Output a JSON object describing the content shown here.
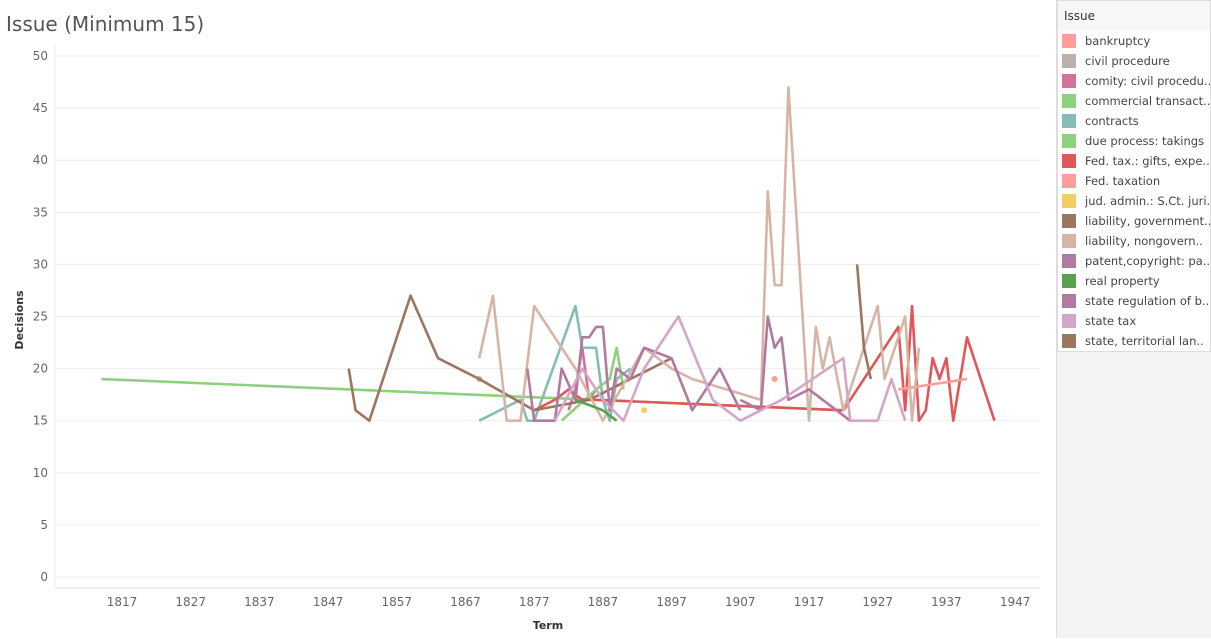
{
  "chart_data": {
    "type": "line",
    "title": "Issue (Minimum 15)",
    "xlabel": "Term",
    "ylabel": "Decisions",
    "xlim": [
      1810,
      1952
    ],
    "ylim": [
      0,
      50
    ],
    "x_ticks": [
      "1817",
      "1827",
      "1837",
      "1847",
      "1857",
      "1867",
      "1877",
      "1887",
      "1897",
      "1907",
      "1917",
      "1927",
      "1937",
      "1947"
    ],
    "y_ticks": [
      "0",
      "5",
      "10",
      "15",
      "20",
      "25",
      "30",
      "35",
      "40",
      "45",
      "50"
    ],
    "grid": "horizontal",
    "legend": {
      "title": "Issue",
      "placement": "right"
    },
    "series": [
      {
        "name": "bankruptcy",
        "color": "#ff9d9a",
        "points": [
          [
            1912,
            19
          ]
        ]
      },
      {
        "name": "civil procedure",
        "color": "#bab0ac",
        "points": [
          [
            1869,
            19
          ]
        ]
      },
      {
        "name": "comity: civil procedu..",
        "color": "#d37295",
        "points": [
          [
            1882,
            16
          ],
          [
            1883,
            18
          ],
          [
            1884,
            22
          ],
          [
            1885,
            17
          ],
          [
            1886,
            18
          ]
        ]
      },
      {
        "name": "commercial transact..",
        "color": "#8cd17d",
        "points": [
          [
            1814,
            19
          ],
          [
            1922,
            16
          ]
        ]
      },
      {
        "name": "contracts",
        "color": "#86bcb6",
        "points": [
          [
            1869,
            15
          ],
          [
            1875,
            17
          ],
          [
            1876,
            15
          ],
          [
            1877,
            15
          ],
          [
            1883,
            26
          ],
          [
            1884,
            22
          ],
          [
            1886,
            22
          ],
          [
            1887,
            17
          ],
          [
            1888,
            15
          ],
          [
            1889,
            19
          ],
          [
            1891,
            20
          ]
        ]
      },
      {
        "name": "due process: takings",
        "color": "#8cd17d",
        "points": [
          [
            1881,
            15
          ],
          [
            1886,
            18
          ],
          [
            1888,
            19
          ],
          [
            1889,
            22
          ],
          [
            1890,
            18
          ]
        ]
      },
      {
        "name": "Fed. tax.: gifts, expe..",
        "color": "#e15759",
        "points": [
          [
            1877,
            16
          ],
          [
            1880,
            17
          ],
          [
            1882,
            18
          ],
          [
            1884,
            17
          ],
          [
            1886,
            17
          ],
          [
            1922,
            16
          ],
          [
            1930,
            24
          ],
          [
            1931,
            16
          ],
          [
            1932,
            26
          ],
          [
            1933,
            15
          ],
          [
            1934,
            16
          ],
          [
            1935,
            21
          ],
          [
            1936,
            19
          ],
          [
            1937,
            21
          ],
          [
            1938,
            15
          ],
          [
            1940,
            23
          ],
          [
            1944,
            15
          ]
        ]
      },
      {
        "name": "Fed. taxation",
        "color": "#ff9d9a",
        "points": [
          [
            1930,
            18
          ],
          [
            1940,
            19
          ]
        ]
      },
      {
        "name": "jud. admin.: S.Ct. juri..",
        "color": "#f1ce63",
        "points": [
          [
            1893,
            16
          ]
        ]
      },
      {
        "name": "liability, government..",
        "color": "#9d7660",
        "points": [
          [
            1850,
            20
          ],
          [
            1851,
            16
          ],
          [
            1853,
            15
          ],
          [
            1859,
            27
          ],
          [
            1863,
            21
          ],
          [
            1869,
            19
          ],
          [
            1877,
            16
          ],
          [
            1885,
            17
          ],
          [
            1897,
            21
          ]
        ]
      },
      {
        "name": "liability, nongovern..",
        "color": "#d7b5a6",
        "points": [
          [
            1869,
            21
          ],
          [
            1871,
            27
          ],
          [
            1873,
            15
          ],
          [
            1875,
            15
          ],
          [
            1877,
            26
          ],
          [
            1883,
            20
          ],
          [
            1887,
            15
          ],
          [
            1893,
            22
          ],
          [
            1897,
            20
          ],
          [
            1900,
            19
          ],
          [
            1910,
            17
          ],
          [
            1911,
            37
          ],
          [
            1912,
            28
          ],
          [
            1913,
            28
          ],
          [
            1914,
            47
          ],
          [
            1917,
            15
          ],
          [
            1918,
            24
          ],
          [
            1919,
            20
          ],
          [
            1920,
            23
          ],
          [
            1922,
            16
          ],
          [
            1927,
            26
          ],
          [
            1928,
            19
          ],
          [
            1931,
            25
          ],
          [
            1932,
            15
          ],
          [
            1933,
            22
          ]
        ]
      },
      {
        "name": "patent,copyright: pa..",
        "color": "#b07aa1",
        "points": [
          [
            1907,
            17
          ],
          [
            1910,
            16
          ],
          [
            1911,
            25
          ],
          [
            1912,
            22
          ],
          [
            1913,
            23
          ],
          [
            1914,
            17
          ],
          [
            1917,
            18
          ],
          [
            1923,
            15
          ]
        ]
      },
      {
        "name": "real property",
        "color": "#59a14f",
        "points": [
          [
            1883,
            17
          ],
          [
            1887,
            16
          ],
          [
            1889,
            15
          ]
        ]
      },
      {
        "name": "state regulation of b..",
        "color": "#b07aa1",
        "points": [
          [
            1876,
            20
          ],
          [
            1877,
            15
          ],
          [
            1880,
            15
          ],
          [
            1881,
            20
          ],
          [
            1883,
            17
          ],
          [
            1884,
            23
          ],
          [
            1885,
            23
          ],
          [
            1886,
            24
          ],
          [
            1887,
            24
          ],
          [
            1888,
            16
          ],
          [
            1889,
            20
          ],
          [
            1891,
            19
          ],
          [
            1893,
            22
          ],
          [
            1897,
            21
          ],
          [
            1900,
            16
          ],
          [
            1904,
            20
          ],
          [
            1907,
            16
          ]
        ]
      },
      {
        "name": "state tax",
        "color": "#d4a6c8",
        "points": [
          [
            1880,
            15
          ],
          [
            1884,
            20
          ],
          [
            1887,
            17
          ],
          [
            1890,
            15
          ],
          [
            1893,
            20
          ],
          [
            1898,
            25
          ],
          [
            1903,
            17
          ],
          [
            1907,
            15
          ],
          [
            1913,
            17
          ],
          [
            1922,
            21
          ],
          [
            1923,
            15
          ],
          [
            1927,
            15
          ],
          [
            1929,
            19
          ],
          [
            1931,
            15
          ]
        ]
      },
      {
        "name": "state, territorial lan..",
        "color": "#9d7660",
        "points": [
          [
            1924,
            30
          ],
          [
            1925,
            22
          ],
          [
            1926,
            19
          ]
        ]
      }
    ]
  }
}
